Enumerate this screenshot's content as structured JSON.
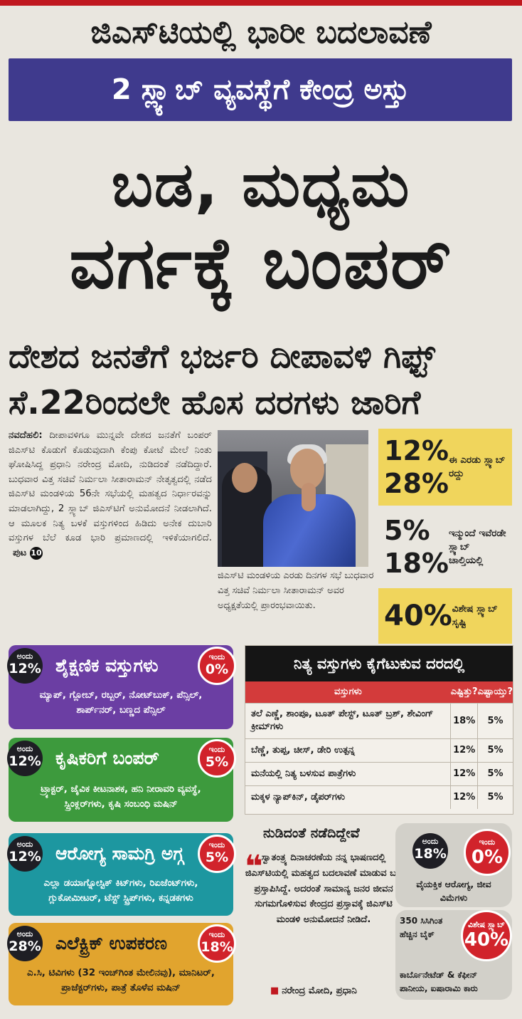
{
  "header": {
    "kicker": "ಜಿಎಸ್‌ಟಿಯಲ್ಲಿ ಭಾರೀ ಬದಲಾವಣೆ",
    "band": "2 ಸ್ಲ್ಯಾಬ್ ವ್ಯವಸ್ಥೆಗೆ ಕೇಂದ್ರ ಅಸ್ತು",
    "headline_line1": "ಬಡ, ಮಧ್ಯಮ",
    "headline_line2": "ವರ್ಗಕ್ಕೆ ಬಂಪರ್",
    "subhead_line1": "ದೇಶದ ಜನತೆಗೆ ಭರ್ಜರಿ ದೀಪಾವಳಿ ಗಿಫ್ಟ್",
    "subhead_line2": "ಸೆ.22ರಿಂದಲೇ ಹೊಸ ದರಗಳು ಜಾರಿಗೆ"
  },
  "story": {
    "dateline": "ನವದೆಹಲಿ:",
    "body": "ದೀಪಾವಳಿಗೂ ಮುನ್ನವೇ ದೇಶದ ಜನತೆಗೆ ಬಂಪರ್ ಜಿಎಸ್‌ಟಿ ಕೊಡುಗೆ ಕೊಡುವುದಾಗಿ ಕೆಂಪು ಕೋಟೆ ಮೇಲೆ ನಿಂತು ಘೋಷಿಸಿದ್ದ ಪ್ರಧಾನಿ ನರೇಂದ್ರ ಮೋದಿ, ನುಡಿದಂತೆ ನಡೆದಿದ್ದಾರೆ. ಬುಧವಾರ ವಿತ್ತ ಸಚಿವೆ ನಿರ್ಮಲಾ ಸೀತಾರಾಮನ್ ನೇತೃತ್ವದಲ್ಲಿ ನಡೆದ ಜಿಎಸ್‌ಟಿ ಮಂಡಳಿಯ 56ನೇ ಸಭೆಯಲ್ಲಿ ಮಹತ್ವದ ನಿರ್ಧಾರವನ್ನು ಮಾಡಲಾಗಿದ್ದು, 2 ಸ್ಲ್ಯಾಬ್ ಜಿಎಸ್‌ಟಿಗೆ ಅನುಮೋದನೆ ನೀಡಲಾಗಿದೆ. ಆ ಮೂಲಕ ನಿತ್ಯ ಬಳಕೆ ವಸ್ತುಗಳಿಂದ ಹಿಡಿದು ಅನೇಕ ದುಬಾರಿ ವಸ್ತುಗಳ ಬೆಲೆ ಕೂಡ ಭಾರಿ ಪ್ರಮಾಣದಲ್ಲಿ ಇಳಿಕೆಯಾಗಲಿದೆ.",
    "page_ref_label": "ಪುಟ",
    "page_ref_num": "10"
  },
  "photo": {
    "caption": "ಜಿಎಸ್‌ಟಿ ಮಂಡಳಿಯ ಎರಡು ದಿನಗಳ ಸಭೆ ಬುಧವಾರ ವಿತ್ತ ಸಚಿವೆ ನಿರ್ಮಲಾ ಸೀತಾರಾಮನ್ ಅವರ ಅಧ್ಯಕ್ಷತೆಯಲ್ಲಿ ಪ್ರಾರಂಭವಾಯಿತು."
  },
  "slabs": [
    {
      "pct_a": "12%",
      "pct_b": "28%",
      "note": "ಈ ಎರಡು ಸ್ಲ್ಯಾಬ್ ರದ್ದು"
    },
    {
      "pct_a": "5%",
      "pct_b": "18%",
      "note": "ಇನ್ಮುಂದೆ ಇವೆರಡೇ ಸ್ಲ್ಯಾಬ್ ಚಾಲ್ತಿಯಲ್ಲಿ"
    },
    {
      "pct_a": "40%",
      "pct_b": "",
      "note": "ವಿಶೇಷ ಸ್ಲ್ಯಾಬ್ ಸೃಷ್ಟಿ"
    }
  ],
  "badge_labels": {
    "was": "ಅಂದು",
    "now": "ಇಂದು",
    "special": "ವಿಶೇಷ ಸ್ಲ್ಯಾಬ್"
  },
  "cards": [
    {
      "title": "ಶೈಕ್ಷಣಿಕ ವಸ್ತುಗಳು",
      "was": "12%",
      "now": "0%",
      "items": "ಮ್ಯಾಪ್, ಗ್ಲೋಬ್, ರಬ್ಬರ್, ನೋಟ್‌ಬುಕ್, ಪೆನ್ಸಿಲ್, ಶಾರ್ಪ್‌ನರ್, ಬಣ್ಣದ ಪೆನ್ಸಿಲ್"
    },
    {
      "title": "ಕೃಷಿಕರಿಗೆ ಬಂಪರ್",
      "was": "12%",
      "now": "5%",
      "items": "ಟ್ರ್ಯಾಕ್ಟರ್, ಜೈವಿಕ ಕೀಟನಾಶಕ, ಹನಿ ನೀರಾವರಿ ವ್ಯವಸ್ಥೆ, ಸ್ಪ್ರಿಂಕ್ಲರ್‌ಗಳು, ಕೃಷಿ ಸಂಬಂಧಿ ಮಷಿನ್"
    },
    {
      "title": "ಆರೋಗ್ಯ ಸಾಮಗ್ರಿ ಅಗ್ಗ",
      "was": "12%",
      "now": "5%",
      "items": "ಎಲ್ಲಾ ಡಯಾಗ್ನೋಸ್ಟಿಕ್ ಕಿಟ್‌ಗಳು, ರಿಏಜೆಂಟ್‌ಗಳು, ಗ್ಲುಕೋಮೀಟರ್, ಟೆಸ್ಟ್ ಸ್ಟ್ರಿಪ್‌ಗಳು, ಕನ್ನಡಕಗಳು"
    },
    {
      "title": "ಎಲೆಕ್ಟ್ರಿಕ್ ಉಪಕರಣ",
      "was": "28%",
      "now": "18%",
      "items": "ಎ.ಸಿ, ಟಿವಿಗಳು (32 ಇಂಚ್‌ಗಿಂತ ಮೇಲಿನವು), ಮಾನಿಟರ್, ಪ್ರಾಜೆಕ್ಟರ್‌ಗಳು, ಪಾತ್ರೆ ತೊಳೆವ ಮಷಿನ್"
    }
  ],
  "table": {
    "title": "ನಿತ್ಯ ವಸ್ತುಗಳು ಕೈಗೆಟುಕುವ ದರದಲ್ಲಿ",
    "headers": [
      "ವಸ್ತುಗಳು",
      "ಎಷ್ಟಿತ್ತು?",
      "ಎಷ್ಟಾಯ್ತು?"
    ],
    "rows": [
      [
        "ತಲೆ ಎಣ್ಣೆ, ಶಾಂಪೂ, ಟೂತ್ ಪೇಸ್ಟ್, ಟೂತ್ ಬ್ರಶ್, ಶೇವಿಂಗ್ ಕ್ರೀಮ್‌ಗಳು",
        "18%",
        "5%"
      ],
      [
        "ಬೆಣ್ಣೆ, ತುಪ್ಪ, ಚೀಸ್, ಡೇರಿ ಉತ್ಪನ್ನ",
        "12%",
        "5%"
      ],
      [
        "ಮನೆಯಲ್ಲಿ ನಿತ್ಯ ಬಳಸುವ ಪಾತ್ರೆಗಳು",
        "12%",
        "5%"
      ],
      [
        "ಮಕ್ಕಳ ನ್ಯಾಪ್‌ಕಿನ್, ಡೈಪರ್‌ಗಳು",
        "12%",
        "5%"
      ]
    ]
  },
  "quote": {
    "title": "ನುಡಿದಂತೆ ನಡೆದಿದ್ದೇವೆ",
    "body": "ಸ್ವಾತಂತ್ರ್ಯ ದಿನಾಚರಣೆಯ ನನ್ನ ಭಾಷಣದಲ್ಲಿ ಜಿಎಸ್‌ಟಿಯಲ್ಲಿ ಮಹತ್ವದ ಬದಲಾವಣೆ ಮಾಡುವ ಬಗ್ಗೆ ಪ್ರಸ್ತಾಪಿಸಿದ್ದೆ. ಅದರಂತೆ ಸಾಮಾನ್ಯ ಜನರ ಜೀವನ ಸುಗಮಗೊಳಿಸುವ ಕೇಂದ್ರದ ಪ್ರಸ್ತಾವಕ್ಕೆ ಜಿಎಸ್‌ಟಿ ಮಂಡಳಿ ಅನುಮೋದನೆ ನೀಡಿದೆ.",
    "by": "ನರೇಂದ್ರ ಮೋದಿ, ಪ್ರಧಾನಿ"
  },
  "specials": {
    "insurance": {
      "was": "18%",
      "now": "0%",
      "text": "ವೈಯಕ್ತಿಕ ಆರೋಗ್ಯ, ಜೀವ ವಿಮೆಗಳು"
    },
    "luxury": {
      "rate": "40%",
      "text_top": "350 ಸಿಸಿಗಿಂತ ಹೆಚ್ಚಿನ ಬೈಕ್",
      "text_bottom": "ಕಾರ್ಬೊನೇಟೆಡ್ & ಕೆಫೀನ್ ಪಾನೀಯ, ಐಷಾರಾಮಿ ಕಾರು"
    }
  },
  "colors": {
    "band": "#3f3a8d",
    "accent_red": "#d1232b",
    "yellow": "#f0d55c"
  }
}
